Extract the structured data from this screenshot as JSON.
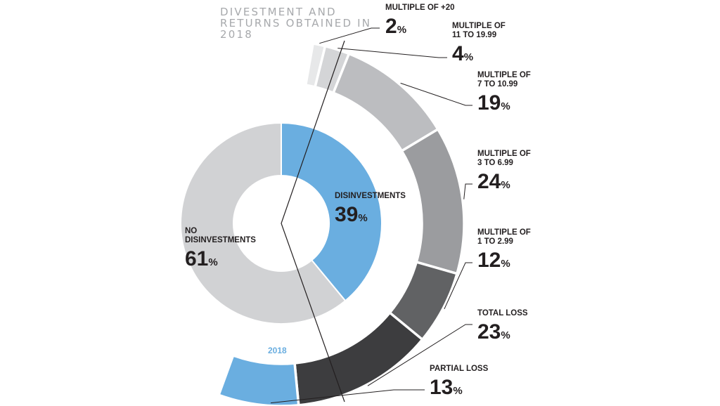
{
  "chart_data": {
    "type": "pie",
    "title": "DIVESTMENT AND RETURNS OBTAINED IN 2018",
    "title_lines": [
      "DIVESTMENT AND",
      "RETURNS OBTAINED IN",
      "2018"
    ],
    "inner": {
      "year_label": "2018",
      "slices": [
        {
          "label_lines": [
            "DISINVESTMENTS"
          ],
          "value": 39,
          "color": "#6aaee0"
        },
        {
          "label_lines": [
            "NO",
            "DISINVESTMENTS"
          ],
          "value": 61,
          "color": "#d1d2d4"
        }
      ]
    },
    "outer": {
      "slices": [
        {
          "label_lines": [
            "MULTIPLE OF +20"
          ],
          "value": 2,
          "color": "#e7e8e9"
        },
        {
          "label_lines": [
            "MULTIPLE OF",
            "11 TO 19.99"
          ],
          "value": 4,
          "color": "#d4d5d7"
        },
        {
          "label_lines": [
            "MULTIPLE OF",
            "7 TO 10.99"
          ],
          "value": 19,
          "color": "#bcbdc0"
        },
        {
          "label_lines": [
            "MULTIPLE OF",
            "3 TO 6.99"
          ],
          "value": 24,
          "color": "#9b9c9f"
        },
        {
          "label_lines": [
            "MULTIPLE OF",
            "1 TO 2.99"
          ],
          "value": 12,
          "color": "#616264"
        },
        {
          "label_lines": [
            "TOTAL LOSS"
          ],
          "value": 23,
          "color": "#3d3d3f"
        },
        {
          "label_lines": [
            "PARTIAL LOSS"
          ],
          "value": 13,
          "color": "#6aaee0"
        }
      ]
    },
    "value_suffix": "%"
  }
}
